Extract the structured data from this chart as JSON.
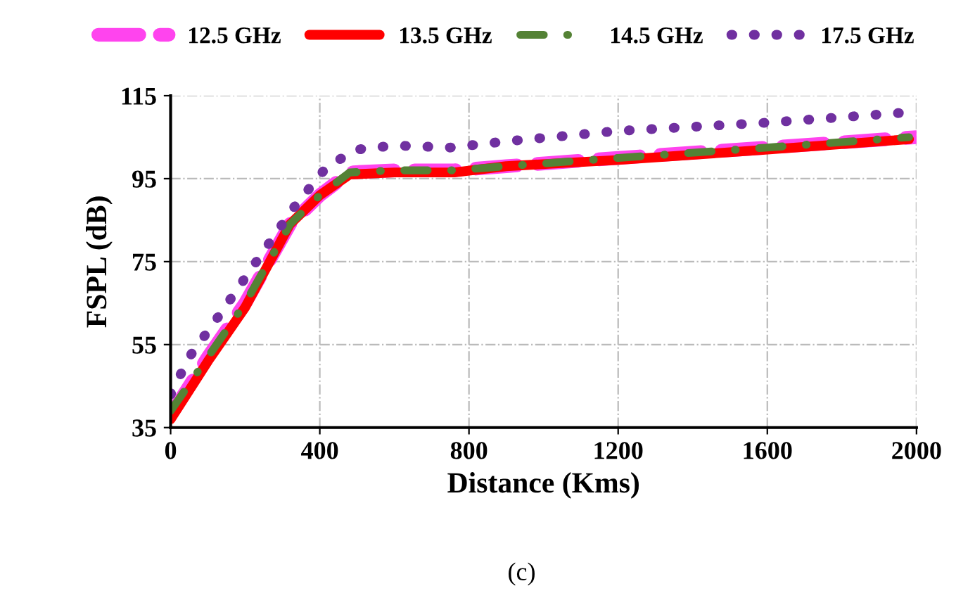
{
  "chart_data": {
    "type": "line",
    "xlabel": "Distance (Kms)",
    "ylabel": "FSPL (dB)",
    "xlim": [
      0,
      2000
    ],
    "xticks": [
      0,
      400,
      800,
      1200,
      1600,
      2000
    ],
    "ylim": [
      35,
      115
    ],
    "yticks": [
      35,
      55,
      75,
      95,
      115
    ],
    "grid": true,
    "legend": "top",
    "annotations": [
      "(c)"
    ],
    "series": [
      {
        "name": "12.5 GHz",
        "color": "#ff44ee",
        "line_style": "dashed",
        "x": [
          0,
          100,
          200,
          320,
          400,
          480,
          600,
          760,
          900,
          1200,
          1600,
          2000
        ],
        "values": [
          38,
          52,
          65,
          84,
          91,
          96.5,
          97,
          97,
          98,
          100,
          102.5,
          105
        ]
      },
      {
        "name": "13.5 GHz",
        "color": "#ff0000",
        "line_style": "solid",
        "x": [
          0,
          100,
          200,
          320,
          400,
          480,
          600,
          760,
          900,
          1200,
          1600,
          1980
        ],
        "values": [
          37,
          51,
          64,
          84,
          91,
          96,
          96.5,
          96.5,
          98,
          99.5,
          102,
          104.5
        ]
      },
      {
        "name": "14.5 GHz",
        "color": "#548235",
        "line_style": "dashdot",
        "x": [
          0,
          100,
          200,
          320,
          400,
          480,
          600,
          760,
          900,
          1200,
          1600,
          1980
        ],
        "values": [
          39,
          52,
          65,
          84,
          91,
          96.5,
          97,
          97,
          98,
          100,
          102.5,
          105
        ]
      },
      {
        "name": "17.5 GHz",
        "color": "#7030a0",
        "line_style": "dotted",
        "x": [
          0,
          50,
          130,
          230,
          330,
          420,
          500,
          600,
          750,
          900,
          1200,
          1600,
          1980
        ],
        "values": [
          43,
          52,
          62,
          75,
          88,
          98,
          102,
          103,
          102.5,
          104,
          106.5,
          108.5,
          111
        ]
      }
    ]
  }
}
